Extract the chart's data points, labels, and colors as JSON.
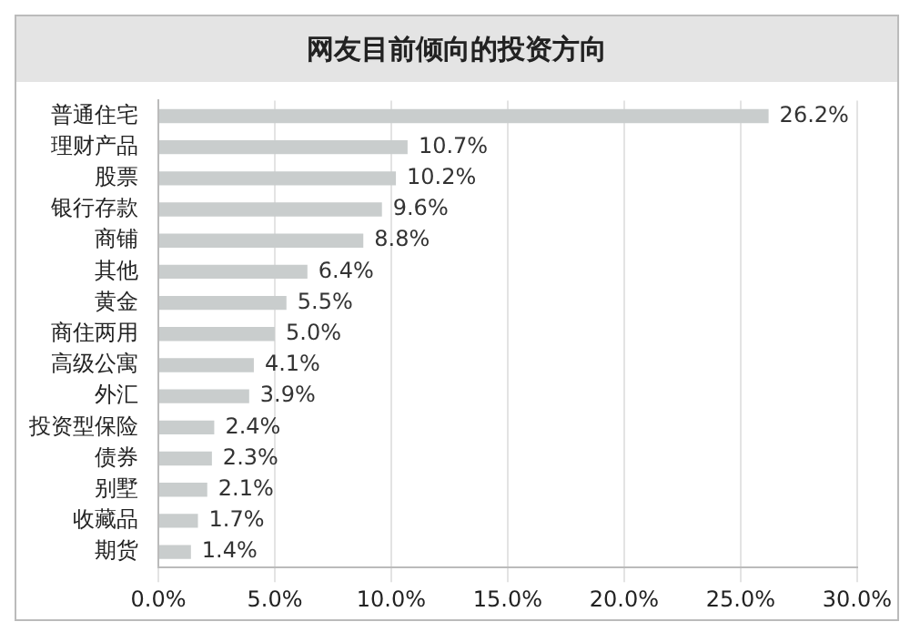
{
  "chart_data": {
    "type": "bar",
    "orientation": "horizontal",
    "title": "网友目前倾向的投资方向",
    "categories": [
      "普通住宅",
      "理财产品",
      "股票",
      "银行存款",
      "商铺",
      "其他",
      "黄金",
      "商住两用",
      "高级公寓",
      "外汇",
      "投资型保险",
      "债券",
      "别墅",
      "收藏品",
      "期货"
    ],
    "values": [
      26.2,
      10.7,
      10.2,
      9.6,
      8.8,
      6.4,
      5.5,
      5.0,
      4.1,
      3.9,
      2.4,
      2.3,
      2.1,
      1.7,
      1.4
    ],
    "value_labels": [
      "26.2%",
      "10.7%",
      "10.2%",
      "9.6%",
      "8.8%",
      "6.4%",
      "5.5%",
      "5.0%",
      "4.1%",
      "3.9%",
      "2.4%",
      "2.3%",
      "2.1%",
      "1.7%",
      "1.4%"
    ],
    "color": "#c9cdcd",
    "xlim": [
      0,
      30
    ],
    "xticks": [
      {
        "value": 0,
        "label": "0.0%"
      },
      {
        "value": 5,
        "label": "5.0%"
      },
      {
        "value": 10,
        "label": "10.0%"
      },
      {
        "value": 15,
        "label": "15.0%"
      },
      {
        "value": 20,
        "label": "20.0%"
      },
      {
        "value": 25,
        "label": "25.0%"
      },
      {
        "value": 30,
        "label": "30.0%"
      }
    ],
    "grid": "x",
    "legend": false
  }
}
